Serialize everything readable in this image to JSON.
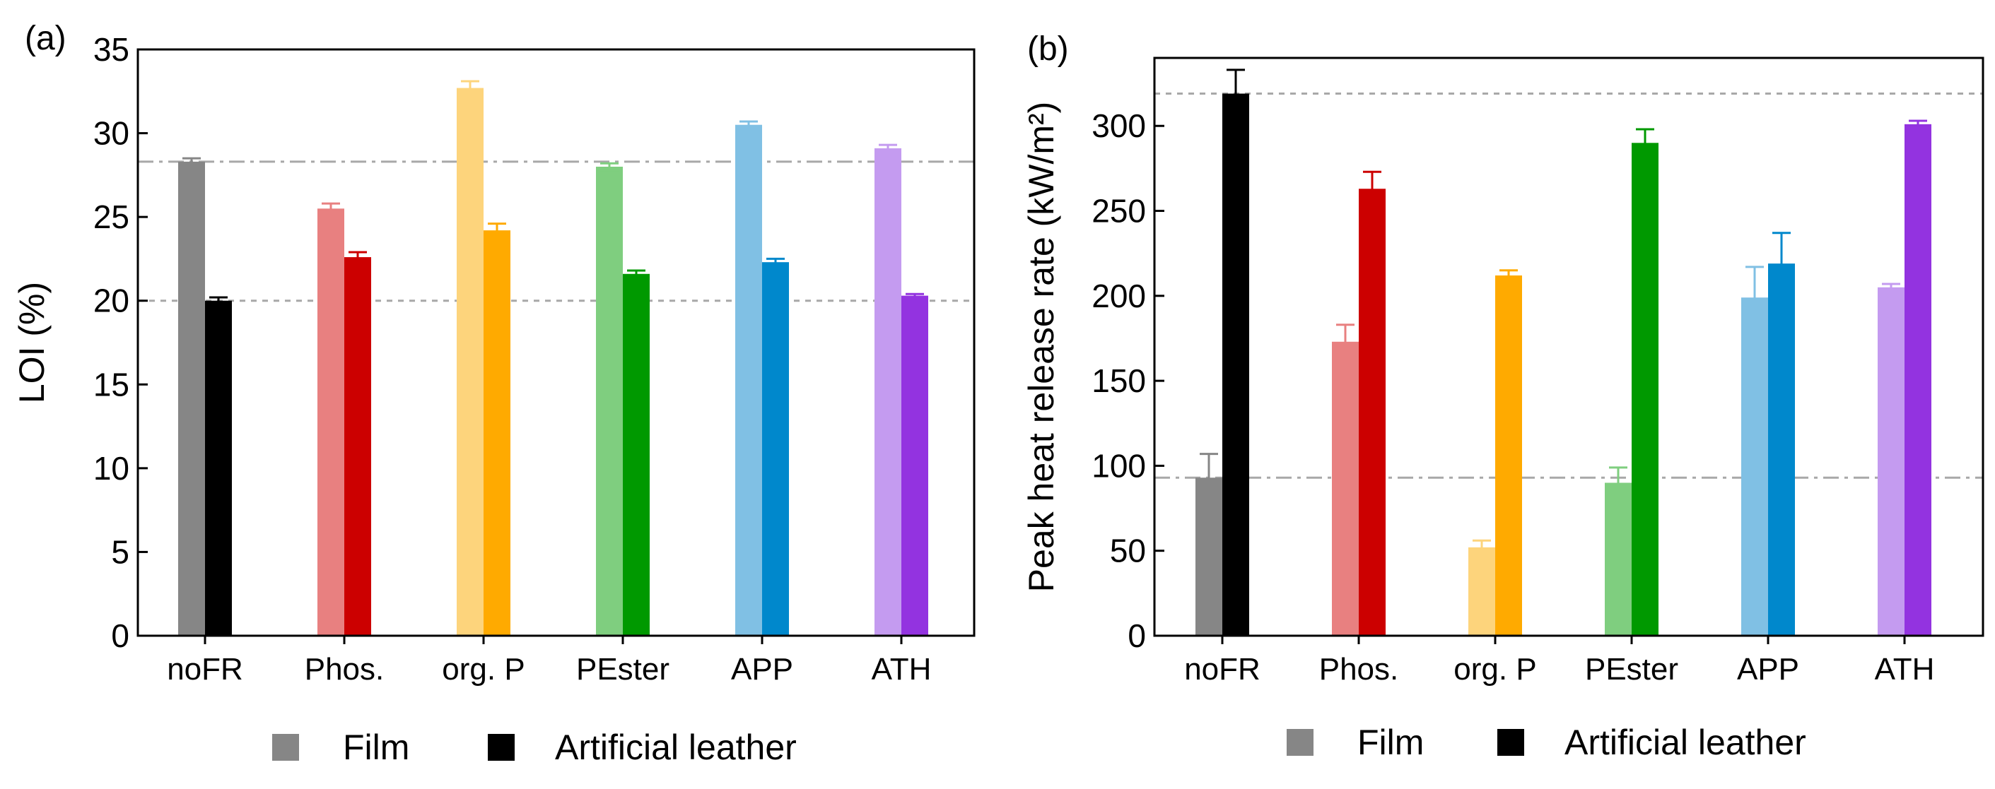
{
  "chart_data": [
    {
      "type": "bar",
      "panel_label": "(a)",
      "title": "",
      "xlabel": "",
      "ylabel": "LOI (%)",
      "ylim": [
        0,
        35
      ],
      "yticks": [
        0,
        5,
        10,
        15,
        20,
        25,
        30,
        35
      ],
      "grid": false,
      "categories": [
        "noFR",
        "Phos.",
        "org. P",
        "PEster",
        "APP",
        "ATH"
      ],
      "series": [
        {
          "name": "Film",
          "values": [
            28.3,
            25.5,
            32.7,
            28.0,
            30.5,
            29.1
          ],
          "errors": [
            0.2,
            0.3,
            0.4,
            0.2,
            0.2,
            0.2
          ]
        },
        {
          "name": "Artificial leather",
          "values": [
            20.0,
            22.6,
            24.2,
            21.6,
            22.3,
            20.3
          ],
          "errors": [
            0.2,
            0.3,
            0.4,
            0.2,
            0.2,
            0.1
          ]
        }
      ],
      "colors": {
        "Film": [
          "#868686",
          "#e88080",
          "#fdd47c",
          "#7fce7f",
          "#80c0e4",
          "#c49bf0"
        ],
        "Artificial leather": [
          "#000000",
          "#cc0000",
          "#ffaa00",
          "#009900",
          "#0088cc",
          "#9333e0"
        ]
      },
      "reference_lines": [
        {
          "value": 28.3,
          "style": "dashdot"
        },
        {
          "value": 20.0,
          "style": "dashed"
        }
      ],
      "legend": [
        "Film",
        "Artificial leather"
      ],
      "legend_position": "bottom"
    },
    {
      "type": "bar",
      "panel_label": "(b)",
      "title": "",
      "xlabel": "",
      "ylabel": "Peak heat release rate (kW/m²)",
      "ylim": [
        0,
        340
      ],
      "yticks": [
        0,
        50,
        100,
        150,
        200,
        250,
        300
      ],
      "grid": false,
      "categories": [
        "noFR",
        "Phos.",
        "org. P",
        "PEster",
        "APP",
        "ATH"
      ],
      "series": [
        {
          "name": "Film",
          "values": [
            93,
            173,
            52,
            90,
            199,
            205
          ],
          "errors": [
            14,
            10,
            4,
            9,
            18,
            2
          ]
        },
        {
          "name": "Artificial leather",
          "values": [
            319,
            263,
            212,
            290,
            219,
            301
          ],
          "errors": [
            14,
            10,
            3,
            8,
            18,
            2
          ]
        }
      ],
      "colors": {
        "Film": [
          "#868686",
          "#e88080",
          "#fdd47c",
          "#7fce7f",
          "#80c0e4",
          "#c49bf0"
        ],
        "Artificial leather": [
          "#000000",
          "#cc0000",
          "#ffaa00",
          "#009900",
          "#0088cc",
          "#9333e0"
        ]
      },
      "reference_lines": [
        {
          "value": 319,
          "style": "dashed"
        },
        {
          "value": 93,
          "style": "dashdot"
        }
      ],
      "legend": [
        "Film",
        "Artificial leather"
      ],
      "legend_position": "bottom"
    }
  ]
}
